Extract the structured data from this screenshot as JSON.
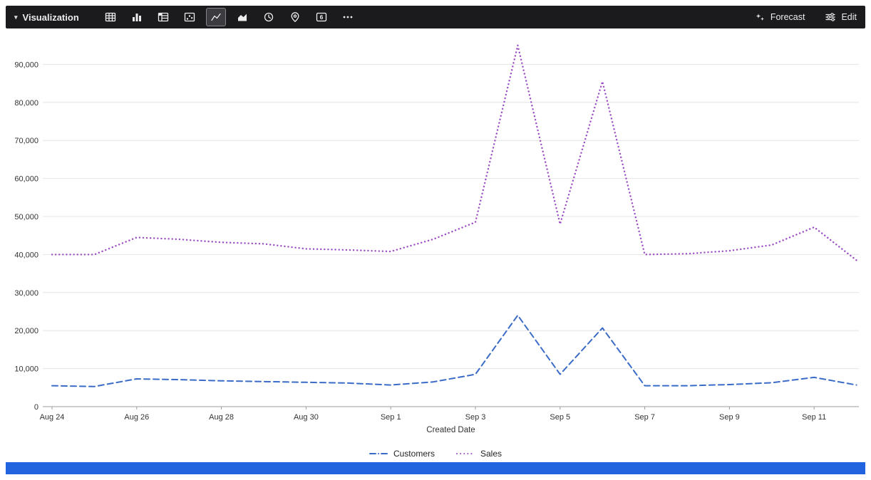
{
  "toolbar": {
    "background": "#1b1b1e",
    "visualization_label": "Visualization",
    "viz_types": [
      {
        "name": "table-icon",
        "selected": false
      },
      {
        "name": "bar-chart-icon",
        "selected": false
      },
      {
        "name": "pivot-table-icon",
        "selected": false
      },
      {
        "name": "scatter-chart-icon",
        "selected": false
      },
      {
        "name": "line-chart-icon",
        "selected": true
      },
      {
        "name": "area-chart-icon",
        "selected": false
      },
      {
        "name": "clock-icon",
        "selected": false
      },
      {
        "name": "map-pin-icon",
        "selected": false
      },
      {
        "name": "single-value-icon",
        "selected": false,
        "glyph": "6"
      },
      {
        "name": "more-options-icon",
        "selected": false
      }
    ],
    "actions": [
      {
        "name": "forecast",
        "label": "Forecast",
        "icon": "forecast-icon"
      },
      {
        "name": "edit",
        "label": "Edit",
        "icon": "edit-icon"
      }
    ]
  },
  "chart_data": {
    "type": "line",
    "x_label": "Created Date",
    "categories": [
      "Aug 24",
      "Aug 25",
      "Aug 26",
      "Aug 27",
      "Aug 28",
      "Aug 29",
      "Aug 30",
      "Aug 31",
      "Sep 1",
      "Sep 2",
      "Sep 3",
      "Sep 4",
      "Sep 5",
      "Sep 6",
      "Sep 7",
      "Sep 8",
      "Sep 9",
      "Sep 10",
      "Sep 11",
      "Sep 12"
    ],
    "x_ticks": [
      {
        "i": 0,
        "label": "Aug 24"
      },
      {
        "i": 2,
        "label": "Aug 26"
      },
      {
        "i": 4,
        "label": "Aug 28"
      },
      {
        "i": 6,
        "label": "Aug 30"
      },
      {
        "i": 8,
        "label": "Sep 1"
      },
      {
        "i": 10,
        "label": "Sep 3"
      },
      {
        "i": 12,
        "label": "Sep 5"
      },
      {
        "i": 14,
        "label": "Sep 7"
      },
      {
        "i": 16,
        "label": "Sep 9"
      },
      {
        "i": 18,
        "label": "Sep 11"
      }
    ],
    "y_ticks": [
      0,
      10000,
      20000,
      30000,
      40000,
      50000,
      60000,
      70000,
      80000,
      90000
    ],
    "ylim": [
      0,
      99000
    ],
    "grid": true,
    "legend_position": "bottom",
    "series": [
      {
        "name": "Customers",
        "color": "#3a6bc7",
        "line_style": "dashed",
        "values": [
          5500,
          5300,
          7300,
          7100,
          6800,
          6600,
          6400,
          6200,
          5700,
          6500,
          8500,
          24000,
          8500,
          20700,
          5500,
          5500,
          5800,
          6300,
          7700,
          5700
        ]
      },
      {
        "name": "Sales",
        "color": "#9c4fc4",
        "line_style": "dotted",
        "values": [
          40000,
          40000,
          44500,
          44000,
          43200,
          42800,
          41500,
          41200,
          40800,
          44000,
          48500,
          95000,
          48000,
          85500,
          40000,
          40200,
          41000,
          42500,
          47200,
          38500
        ]
      }
    ]
  },
  "footer": {
    "accent_color": "#2264e0"
  }
}
